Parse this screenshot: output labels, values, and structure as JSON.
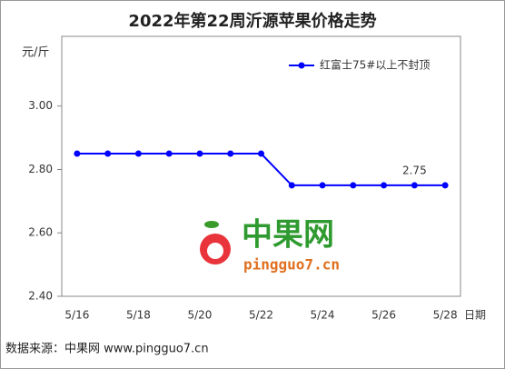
{
  "chart_data": {
    "type": "line",
    "title": "2022年第22周沂源苹果价格走势",
    "y_label": "元/斤",
    "x_label": "日期",
    "categories": [
      "5/16",
      null,
      "5/18",
      null,
      "5/20",
      null,
      "5/22",
      null,
      "5/24",
      null,
      "5/26",
      null,
      "5/28"
    ],
    "series": [
      {
        "name": "红富士75#以上不封顶",
        "color": "#0000ff",
        "values": [
          2.85,
          2.85,
          2.85,
          2.85,
          2.85,
          2.85,
          2.85,
          2.75,
          2.75,
          2.75,
          2.75,
          2.75,
          2.75
        ],
        "value_labels": [
          null,
          null,
          null,
          null,
          null,
          null,
          null,
          null,
          null,
          null,
          null,
          "2.75",
          null
        ]
      }
    ],
    "ylim": [
      2.4,
      3.22
    ],
    "yticks": [
      {
        "value": 2.4,
        "label": "2.40"
      },
      {
        "value": 2.6,
        "label": "2.60"
      },
      {
        "value": 2.8,
        "label": "2.80"
      },
      {
        "value": 3.0,
        "label": "3.00"
      }
    ],
    "grid": false,
    "legend": "top-right",
    "watermark": {
      "name": "中果网",
      "site": "pingguo7.cn"
    },
    "source": "数据来源：中果网 www.pingguo7.cn"
  }
}
